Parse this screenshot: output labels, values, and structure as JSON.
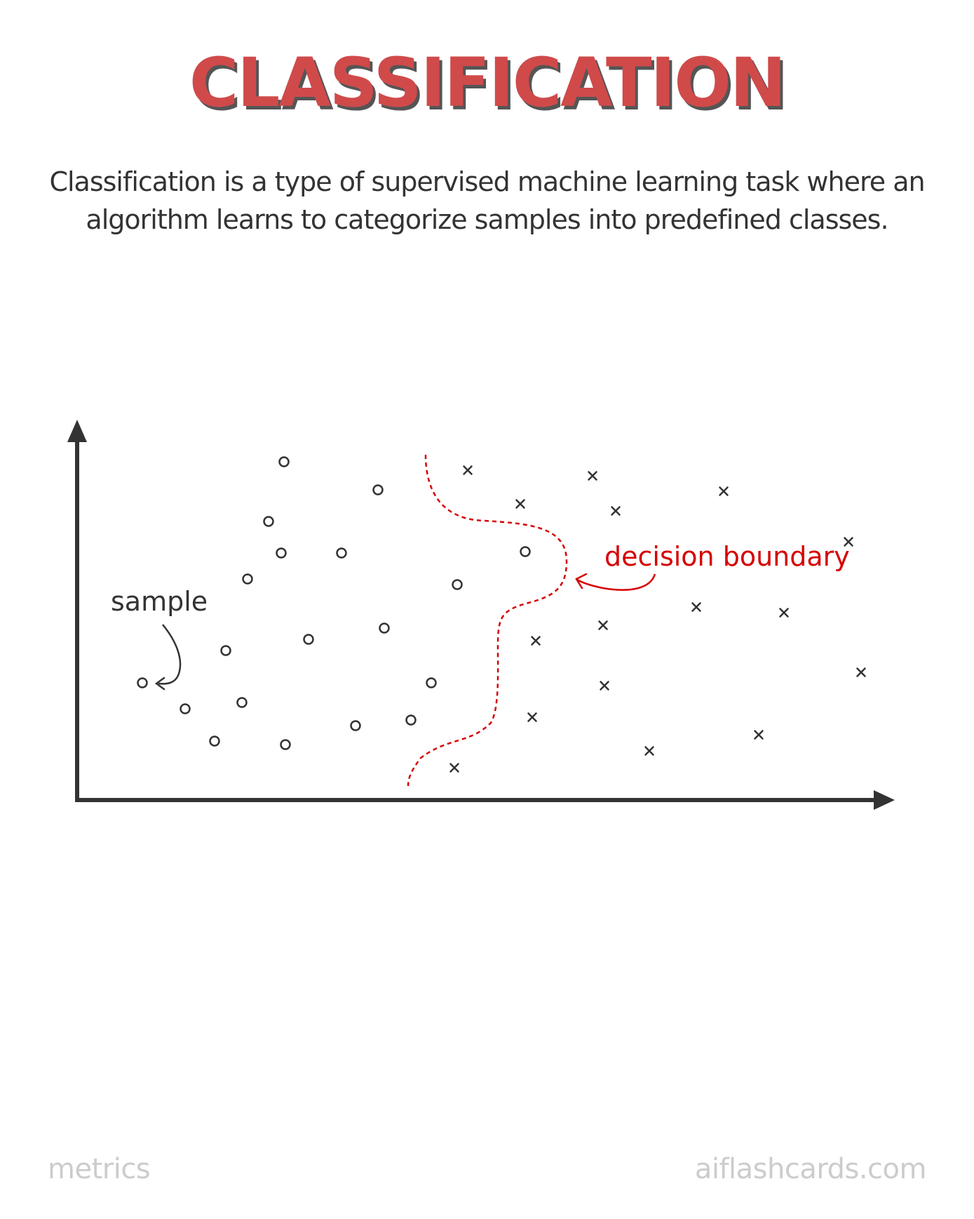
{
  "title": "CLASSIFICATION",
  "description": "Classification is a type of supervised machine learning task where an algorithm learns to categorize samples into predefined classes.",
  "diagram": {
    "sample_label": "sample",
    "boundary_label": "decision boundary",
    "boundary_color": "#d60000",
    "marker_color": "#333333"
  },
  "footer": {
    "left": "metrics",
    "right": "aiflashcards.com"
  }
}
